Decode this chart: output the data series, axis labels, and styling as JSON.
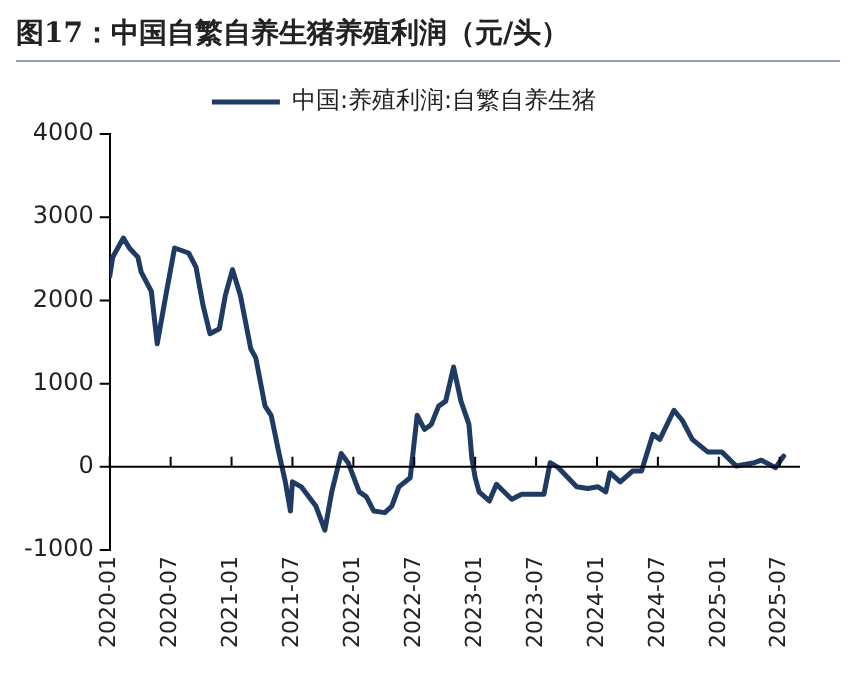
{
  "chart_data": {
    "type": "line",
    "title": "图17：中国自繁自养生猪养殖利润（元/头）",
    "x": [
      "2020-01-01",
      "2020-01-10",
      "2020-02-11",
      "2020-02-28",
      "2020-03-25",
      "2020-04-04",
      "2020-05-04",
      "2020-05-22",
      "2020-06-19",
      "2020-07-13",
      "2020-08-25",
      "2020-09-16",
      "2020-10-07",
      "2020-10-28",
      "2020-11-25",
      "2020-12-13",
      "2021-01-04",
      "2021-01-28",
      "2021-02-26",
      "2021-03-13",
      "2021-04-10",
      "2021-04-28",
      "2021-05-22",
      "2021-06-10",
      "2021-06-25",
      "2021-07-01",
      "2021-07-28",
      "2021-09-10",
      "2021-10-07",
      "2021-10-28",
      "2021-11-25",
      "2021-12-16",
      "2022-01-19",
      "2022-02-09",
      "2022-03-01",
      "2022-04-04",
      "2022-04-25",
      "2022-05-16",
      "2022-06-19",
      "2022-07-10",
      "2022-08-01",
      "2022-08-22",
      "2022-09-13",
      "2022-10-04",
      "2022-10-28",
      "2022-11-19",
      "2022-12-13",
      "2022-12-22",
      "2023-01-01",
      "2023-01-13",
      "2023-02-12",
      "2023-03-04",
      "2023-04-19",
      "2023-05-19",
      "2023-07-25",
      "2023-08-13",
      "2023-09-07",
      "2023-11-01",
      "2023-12-04",
      "2024-01-04",
      "2024-01-28",
      "2024-02-09",
      "2024-03-10",
      "2024-04-16",
      "2024-05-13",
      "2024-06-16",
      "2024-07-07",
      "2024-08-19",
      "2024-09-13",
      "2024-10-13",
      "2024-11-28",
      "2025-01-10",
      "2025-02-21",
      "2025-04-16",
      "2025-05-07",
      "2025-06-19",
      "2025-07-13"
    ],
    "series": [
      {
        "name": "中国:养殖利润:自繁自养生猪",
        "color": "#1f3b63",
        "values": [
          2290,
          2520,
          2750,
          2630,
          2520,
          2340,
          2110,
          1480,
          2110,
          2630,
          2570,
          2400,
          1940,
          1600,
          1660,
          2060,
          2370,
          2060,
          1420,
          1310,
          730,
          620,
          160,
          -180,
          -530,
          -180,
          -240,
          -470,
          -760,
          -300,
          160,
          50,
          -300,
          -360,
          -530,
          -550,
          -470,
          -240,
          -130,
          620,
          450,
          510,
          730,
          790,
          1200,
          790,
          510,
          100,
          -130,
          -300,
          -410,
          -210,
          -390,
          -330,
          -330,
          50,
          -10,
          -240,
          -260,
          -240,
          -300,
          -70,
          -180,
          -50,
          -50,
          390,
          330,
          680,
          560,
          330,
          180,
          180,
          10,
          50,
          80,
          -10,
          130
        ]
      }
    ],
    "xlim": [
      "2020-01",
      "2025-09"
    ],
    "xticks": [
      "2020-01",
      "2020-07",
      "2021-01",
      "2021-07",
      "2022-01",
      "2022-07",
      "2023-01",
      "2023-07",
      "2024-01",
      "2024-07",
      "2025-01",
      "2025-07"
    ],
    "ylim": [
      -1000,
      4000
    ],
    "yticks": [
      -1000,
      0,
      1000,
      2000,
      3000,
      4000
    ],
    "ref_lines": [
      {
        "axis": "y",
        "value": 0,
        "color": "#000000",
        "line_style": "solid"
      }
    ],
    "grid": false,
    "legend": "top",
    "marker": "none",
    "line_style": "solid"
  }
}
